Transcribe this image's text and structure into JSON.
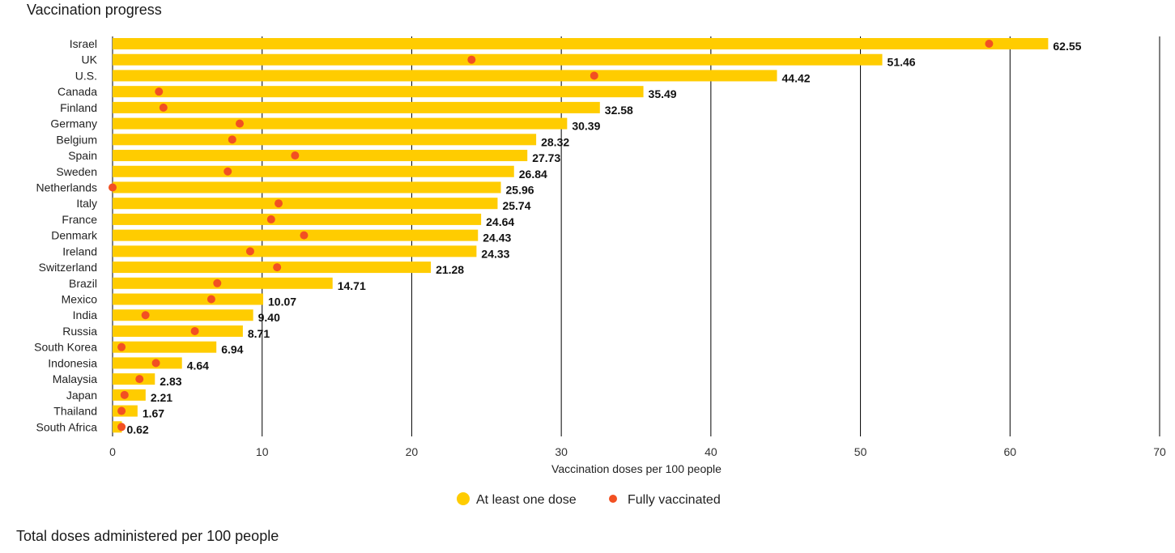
{
  "title": "Vaccination progress",
  "footer": "Total doses administered per 100 people",
  "chart_data": {
    "type": "bar",
    "orientation": "horizontal",
    "categories": [
      "Israel",
      "UK",
      "U.S.",
      "Canada",
      "Finland",
      "Germany",
      "Belgium",
      "Spain",
      "Sweden",
      "Netherlands",
      "Italy",
      "France",
      "Denmark",
      "Ireland",
      "Switzerland",
      "Brazil",
      "Mexico",
      "India",
      "Russia",
      "South Korea",
      "Indonesia",
      "Malaysia",
      "Japan",
      "Thailand",
      "South Africa"
    ],
    "series": [
      {
        "name": "At least one dose",
        "color": "#FFCC00",
        "marker": "bar",
        "values": [
          62.55,
          51.46,
          44.42,
          35.49,
          32.58,
          30.39,
          28.32,
          27.73,
          26.84,
          25.96,
          25.74,
          24.64,
          24.43,
          24.33,
          21.28,
          14.71,
          10.07,
          9.4,
          8.71,
          6.94,
          4.64,
          2.83,
          2.21,
          1.67,
          0.62
        ]
      },
      {
        "name": "Fully vaccinated",
        "color": "#F25022",
        "marker": "dot",
        "values": [
          58.6,
          24.0,
          32.2,
          3.1,
          3.4,
          8.5,
          8.0,
          12.2,
          7.7,
          0.0,
          11.1,
          10.6,
          12.8,
          9.2,
          11.0,
          7.0,
          6.6,
          2.2,
          5.5,
          0.6,
          2.9,
          1.8,
          0.8,
          0.6,
          0.6
        ]
      }
    ],
    "value_labels": [
      "62.55",
      "51.46",
      "44.42",
      "35.49",
      "32.58",
      "30.39",
      "28.32",
      "27.73",
      "26.84",
      "25.96",
      "25.74",
      "24.64",
      "24.43",
      "24.33",
      "21.28",
      "14.71",
      "10.07",
      "9.40",
      "8.71",
      "6.94",
      "4.64",
      "2.83",
      "2.21",
      "1.67",
      "0.62"
    ],
    "xlabel": "Vaccination doses per 100 people",
    "xlim": [
      0,
      70
    ],
    "xticks": [
      0,
      10,
      20,
      30,
      40,
      50,
      60,
      70
    ],
    "grid": "vertical",
    "legend_position": "bottom-center"
  }
}
